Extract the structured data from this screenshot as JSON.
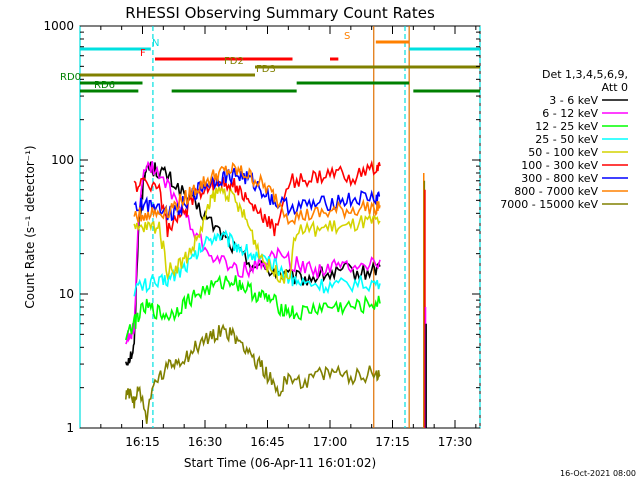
{
  "chart_data": {
    "type": "line",
    "title": "RHESSI Observing Summary Count Rates",
    "xlabel": "Start Time (06-Apr-11 16:01:02)",
    "ylabel": "Count Rate (s⁻¹ detector⁻¹)",
    "y_scale": "log",
    "ylim": [
      1,
      1000
    ],
    "xlim_minutes": [
      0,
      96
    ],
    "x_ticks": [
      {
        "label": "16:15",
        "t": 15
      },
      {
        "label": "16:30",
        "t": 30
      },
      {
        "label": "16:45",
        "t": 45
      },
      {
        "label": "17:00",
        "t": 60
      },
      {
        "label": "17:15",
        "t": 75
      },
      {
        "label": "17:30",
        "t": 90
      }
    ],
    "y_ticks": [
      {
        "label": "1",
        "v": 1
      },
      {
        "label": "10",
        "v": 10
      },
      {
        "label": "100",
        "v": 100
      },
      {
        "label": "1000",
        "v": 1000
      }
    ],
    "legend_header": [
      "Det 1,3,4,5,6,9,",
      "Att 0"
    ],
    "legend_placement": "right",
    "series": [
      {
        "name": "3 - 6 keV",
        "color": "#000000",
        "points": [
          [
            11,
            3.2
          ],
          [
            12,
            3.4
          ],
          [
            13,
            4
          ],
          [
            14,
            30
          ],
          [
            15,
            60
          ],
          [
            16,
            90
          ],
          [
            18,
            85
          ],
          [
            20,
            80
          ],
          [
            22,
            70
          ],
          [
            25,
            55
          ],
          [
            28,
            45
          ],
          [
            31,
            35
          ],
          [
            34,
            28
          ],
          [
            37,
            22
          ],
          [
            40,
            18
          ],
          [
            43,
            16
          ],
          [
            46,
            15
          ],
          [
            49,
            14
          ],
          [
            52,
            13
          ],
          [
            55,
            13
          ],
          [
            58,
            14
          ],
          [
            61,
            14
          ],
          [
            64,
            15
          ],
          [
            67,
            14
          ],
          [
            70,
            15
          ],
          [
            72,
            16
          ]
        ]
      },
      {
        "name": "6 - 12 keV",
        "color": "#ff00ff",
        "points": [
          [
            11,
            4.5
          ],
          [
            12,
            5
          ],
          [
            13,
            5.5
          ],
          [
            14,
            40
          ],
          [
            16,
            100
          ],
          [
            18,
            80
          ],
          [
            21,
            65
          ],
          [
            24,
            45
          ],
          [
            27,
            30
          ],
          [
            30,
            22
          ],
          [
            33,
            18
          ],
          [
            36,
            16
          ],
          [
            39,
            15
          ],
          [
            42,
            16
          ],
          [
            45,
            18
          ],
          [
            48,
            20
          ],
          [
            51,
            17
          ],
          [
            54,
            16
          ],
          [
            57,
            15
          ],
          [
            60,
            16
          ],
          [
            63,
            16
          ],
          [
            66,
            17
          ],
          [
            69,
            17
          ],
          [
            72,
            18
          ]
        ]
      },
      {
        "name": "12 - 25 keV",
        "color": "#00ff00",
        "points": [
          [
            11,
            5
          ],
          [
            13,
            6
          ],
          [
            14,
            7
          ],
          [
            16,
            8
          ],
          [
            18,
            7.5
          ],
          [
            20,
            7
          ],
          [
            22,
            7
          ],
          [
            24,
            8
          ],
          [
            26,
            9
          ],
          [
            28,
            10
          ],
          [
            31,
            11
          ],
          [
            34,
            12
          ],
          [
            36,
            13
          ],
          [
            38,
            12
          ],
          [
            40,
            11
          ],
          [
            42,
            10
          ],
          [
            44,
            9.5
          ],
          [
            46,
            9
          ],
          [
            48,
            8
          ],
          [
            50,
            7.5
          ],
          [
            52,
            7
          ],
          [
            55,
            7.5
          ],
          [
            58,
            8
          ],
          [
            61,
            8
          ],
          [
            64,
            8
          ],
          [
            67,
            8
          ],
          [
            70,
            8.5
          ],
          [
            72,
            8.5
          ]
        ]
      },
      {
        "name": "25 - 50 keV",
        "color": "#00ffff",
        "points": [
          [
            13,
            11
          ],
          [
            15,
            11.5
          ],
          [
            17,
            12
          ],
          [
            19,
            12
          ],
          [
            21,
            13
          ],
          [
            23,
            14
          ],
          [
            25,
            16
          ],
          [
            27,
            18
          ],
          [
            29,
            22
          ],
          [
            31,
            26
          ],
          [
            33,
            28
          ],
          [
            35,
            26
          ],
          [
            37,
            24
          ],
          [
            39,
            22
          ],
          [
            41,
            20
          ],
          [
            43,
            18
          ],
          [
            45,
            17
          ],
          [
            47,
            16
          ],
          [
            49,
            14
          ],
          [
            51,
            13
          ],
          [
            53,
            12
          ],
          [
            56,
            12
          ],
          [
            59,
            11.5
          ],
          [
            62,
            11.5
          ],
          [
            66,
            12
          ],
          [
            70,
            12
          ],
          [
            72,
            12
          ]
        ]
      },
      {
        "name": "50 - 100 keV",
        "color": "#d4d400",
        "points": [
          [
            13,
            30
          ],
          [
            15,
            31
          ],
          [
            17,
            32
          ],
          [
            19,
            32
          ],
          [
            21,
            15
          ],
          [
            23,
            16
          ],
          [
            25,
            18
          ],
          [
            27,
            22
          ],
          [
            29,
            30
          ],
          [
            31,
            45
          ],
          [
            32,
            55
          ],
          [
            34,
            60
          ],
          [
            36,
            55
          ],
          [
            38,
            45
          ],
          [
            40,
            35
          ],
          [
            42,
            25
          ],
          [
            44,
            18
          ],
          [
            46,
            15
          ],
          [
            48,
            14
          ],
          [
            50,
            13
          ],
          [
            52,
            30
          ],
          [
            55,
            30
          ],
          [
            58,
            31
          ],
          [
            61,
            32
          ],
          [
            64,
            31
          ],
          [
            67,
            34
          ],
          [
            70,
            34
          ],
          [
            72,
            35
          ]
        ]
      },
      {
        "name": "100 - 300 keV",
        "color": "#ff0000",
        "points": [
          [
            13,
            65
          ],
          [
            15,
            66
          ],
          [
            17,
            67
          ],
          [
            19,
            62
          ],
          [
            21,
            30
          ],
          [
            23,
            35
          ],
          [
            25,
            40
          ],
          [
            27,
            50
          ],
          [
            29,
            60
          ],
          [
            31,
            65
          ],
          [
            33,
            68
          ],
          [
            35,
            70
          ],
          [
            37,
            65
          ],
          [
            39,
            55
          ],
          [
            41,
            45
          ],
          [
            43,
            40
          ],
          [
            45,
            35
          ],
          [
            47,
            30
          ],
          [
            50,
            70
          ],
          [
            53,
            70
          ],
          [
            56,
            72
          ],
          [
            59,
            75
          ],
          [
            62,
            80
          ],
          [
            65,
            75
          ],
          [
            68,
            80
          ],
          [
            71,
            85
          ],
          [
            72,
            90
          ]
        ]
      },
      {
        "name": "300 - 800 keV",
        "color": "#0000ff",
        "points": [
          [
            13,
            45
          ],
          [
            15,
            46
          ],
          [
            17,
            47
          ],
          [
            19,
            46
          ],
          [
            21,
            40
          ],
          [
            23,
            42
          ],
          [
            25,
            48
          ],
          [
            27,
            55
          ],
          [
            29,
            62
          ],
          [
            31,
            68
          ],
          [
            33,
            72
          ],
          [
            35,
            75
          ],
          [
            37,
            78
          ],
          [
            39,
            75
          ],
          [
            41,
            70
          ],
          [
            43,
            62
          ],
          [
            45,
            55
          ],
          [
            47,
            48
          ],
          [
            50,
            45
          ],
          [
            53,
            45
          ],
          [
            56,
            46
          ],
          [
            59,
            47
          ],
          [
            62,
            50
          ],
          [
            65,
            50
          ],
          [
            68,
            52
          ],
          [
            71,
            52
          ],
          [
            72,
            54
          ]
        ]
      },
      {
        "name": "800 - 7000 keV",
        "color": "#ff8000",
        "points": [
          [
            13,
            38
          ],
          [
            15,
            39
          ],
          [
            17,
            40
          ],
          [
            19,
            40
          ],
          [
            21,
            42
          ],
          [
            23,
            46
          ],
          [
            25,
            52
          ],
          [
            27,
            58
          ],
          [
            29,
            65
          ],
          [
            31,
            72
          ],
          [
            33,
            78
          ],
          [
            35,
            82
          ],
          [
            37,
            83
          ],
          [
            39,
            80
          ],
          [
            41,
            75
          ],
          [
            43,
            68
          ],
          [
            45,
            60
          ],
          [
            47,
            52
          ],
          [
            50,
            38
          ],
          [
            53,
            38
          ],
          [
            56,
            39
          ],
          [
            59,
            40
          ],
          [
            62,
            42
          ],
          [
            65,
            42
          ],
          [
            68,
            44
          ],
          [
            71,
            45
          ],
          [
            72,
            46
          ]
        ]
      },
      {
        "name": "7000 - 15000 keV",
        "color": "#808000",
        "points": [
          [
            11,
            1.7
          ],
          [
            12,
            1.8
          ],
          [
            13,
            1.6
          ],
          [
            14,
            2
          ],
          [
            16,
            1.2
          ],
          [
            18,
            2.2
          ],
          [
            20,
            2.5
          ],
          [
            22,
            3
          ],
          [
            24,
            3.2
          ],
          [
            26,
            3.5
          ],
          [
            28,
            4
          ],
          [
            30,
            4.5
          ],
          [
            32,
            5
          ],
          [
            34,
            5.5
          ],
          [
            36,
            5
          ],
          [
            38,
            4.5
          ],
          [
            40,
            4
          ],
          [
            42,
            3.2
          ],
          [
            44,
            2.8
          ],
          [
            46,
            2.2
          ],
          [
            48,
            1.8
          ],
          [
            50,
            2.5
          ],
          [
            53,
            2.2
          ],
          [
            56,
            2.4
          ],
          [
            59,
            2.5
          ],
          [
            62,
            2.6
          ],
          [
            65,
            2.4
          ],
          [
            68,
            2.5
          ],
          [
            71,
            2.6
          ],
          [
            72,
            2.5
          ]
        ]
      }
    ],
    "late_spike": {
      "t": 82.5,
      "peaks": [
        {
          "color": "#ff8000",
          "v": 80
        },
        {
          "color": "#808000",
          "v": 70
        },
        {
          "color": "#ff0000",
          "v": 60
        },
        {
          "color": "#ff00ff",
          "v": 8
        },
        {
          "color": "#000000",
          "v": 6
        }
      ]
    },
    "vlines": [
      {
        "color": "#00e0e0",
        "t": 0,
        "dashed": false
      },
      {
        "color": "#00e0e0",
        "t": 17.5,
        "dashed": true
      },
      {
        "color": "#e07000",
        "t": 70.5,
        "dashed": false
      },
      {
        "color": "#00e0e0",
        "t": 78,
        "dashed": true
      },
      {
        "color": "#e07000",
        "t": 79,
        "dashed": false
      },
      {
        "color": "#00e0e0",
        "t": 96,
        "dashed": true
      }
    ],
    "flags": [
      {
        "label": "N",
        "color": "#00e0e0",
        "segments": [
          [
            0,
            17
          ],
          [
            79,
            96
          ]
        ]
      },
      {
        "label": "S",
        "color": "#ff8000",
        "segments": [
          [
            71,
            79
          ]
        ]
      },
      {
        "label": "F",
        "color": "#ff0000",
        "segments": [
          [
            18,
            51
          ],
          [
            60,
            62
          ]
        ]
      },
      {
        "label": "FD2",
        "color": "#808000",
        "segments": [
          [
            42,
            96
          ]
        ]
      },
      {
        "label": "FD3",
        "color": "#808000",
        "segments": [
          [
            0,
            42
          ]
        ]
      },
      {
        "label": "RD0",
        "color": "#008000",
        "segments": [
          [
            0,
            15
          ],
          [
            52,
            79
          ]
        ]
      },
      {
        "label": "RD6",
        "color": "#008000",
        "segments": [
          [
            0,
            14
          ],
          [
            22,
            52
          ],
          [
            80,
            96
          ]
        ]
      }
    ]
  },
  "timestamp": "16-Oct-2021 08:00"
}
